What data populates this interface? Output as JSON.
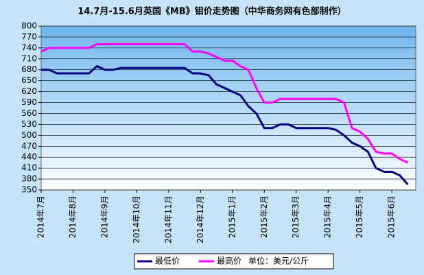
{
  "chart_data": {
    "type": "line",
    "title": "14.7月-15.6月英国《MB》钼价走势图（中华商务网有色部制作）",
    "categories": [
      "2014年7月",
      null,
      null,
      null,
      "2014年8月",
      null,
      null,
      null,
      "2014年9月",
      null,
      null,
      null,
      "2014年10月",
      null,
      null,
      null,
      "2014年11月",
      null,
      null,
      null,
      "2014年12月",
      null,
      null,
      null,
      "2015年1月",
      null,
      null,
      null,
      "2015年2月",
      null,
      null,
      null,
      "2015年3月",
      null,
      null,
      null,
      "2015年4月",
      null,
      null,
      null,
      "2015年5月",
      null,
      null,
      null,
      "2015年6月",
      null,
      null,
      null
    ],
    "series": [
      {
        "name": "最低价",
        "color": "#000080",
        "values": [
          680,
          680,
          670,
          670,
          670,
          670,
          670,
          690,
          680,
          680,
          685,
          685,
          685,
          685,
          685,
          685,
          685,
          685,
          685,
          670,
          670,
          665,
          640,
          630,
          620,
          610,
          580,
          560,
          520,
          520,
          530,
          530,
          520,
          520,
          520,
          520,
          520,
          515,
          500,
          480,
          470,
          455,
          410,
          400,
          400,
          390,
          365,
          null
        ]
      },
      {
        "name": "最高价",
        "color": "#ff00ff",
        "values": [
          730,
          740,
          740,
          740,
          740,
          740,
          740,
          750,
          750,
          750,
          750,
          750,
          750,
          750,
          750,
          750,
          750,
          750,
          750,
          730,
          730,
          725,
          715,
          705,
          705,
          690,
          680,
          630,
          590,
          590,
          600,
          600,
          600,
          600,
          600,
          600,
          600,
          600,
          590,
          520,
          510,
          490,
          455,
          450,
          450,
          435,
          425,
          null
        ]
      }
    ],
    "unit_note": "单位：美元/公斤",
    "ylim": [
      350,
      800
    ],
    "yticks": [
      350,
      380,
      410,
      440,
      470,
      500,
      530,
      560,
      590,
      620,
      650,
      680,
      710,
      740,
      770,
      800
    ],
    "grid": true
  }
}
